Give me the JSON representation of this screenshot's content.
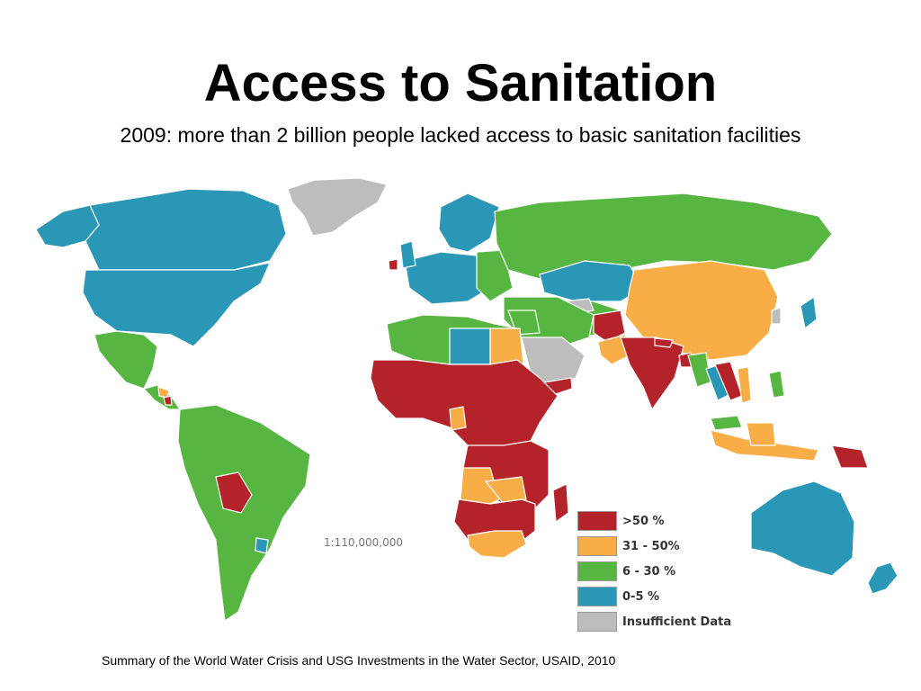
{
  "slide": {
    "title": "Access to Sanitation",
    "subtitle": "2009: more than 2 billion people lacked access to basic sanitation facilities",
    "scale_label": "1:110,000,000",
    "source": "Summary of the World Water Crisis and USG Investments in the Water Sector, USAID, 2010"
  },
  "legend": [
    {
      "label": ">50 %",
      "color": "#b5232a"
    },
    {
      "label": "31 - 50%",
      "color": "#f9ad46"
    },
    {
      "label": "6 - 30 %",
      "color": "#57b541"
    },
    {
      "label": "0-5 %",
      "color": "#2b97b7"
    },
    {
      "label": "Insufficient Data",
      "color": "#bdbdbd"
    }
  ]
}
